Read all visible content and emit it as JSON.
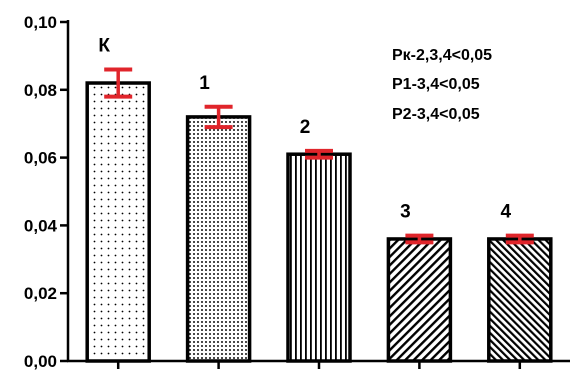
{
  "chart_data": {
    "type": "bar",
    "title": "",
    "xlabel": "",
    "ylabel": "",
    "ylim": [
      0,
      0.1
    ],
    "yticks": [
      "0,00",
      "0,02",
      "0,04",
      "0,06",
      "0,08",
      "0,10"
    ],
    "categories": [
      "К",
      "1",
      "2",
      "3",
      "4"
    ],
    "values": [
      0.082,
      0.072,
      0.061,
      0.036,
      0.036
    ],
    "errors": [
      0.004,
      0.003,
      0.001,
      0.001,
      0.001
    ],
    "bar_patterns": [
      "dots-sparse",
      "dots-dense",
      "vertical-lines",
      "diagonal-lines",
      "diagonal-lines-dense"
    ],
    "annotations": [
      "Pк-2,3,4<0,05",
      "P1-3,4<0,05",
      "P2-3,4<0,05"
    ],
    "grid": false,
    "colors": {
      "bar_edge": "#000000",
      "error_bar": "#e0252b",
      "axis": "#000000"
    }
  }
}
